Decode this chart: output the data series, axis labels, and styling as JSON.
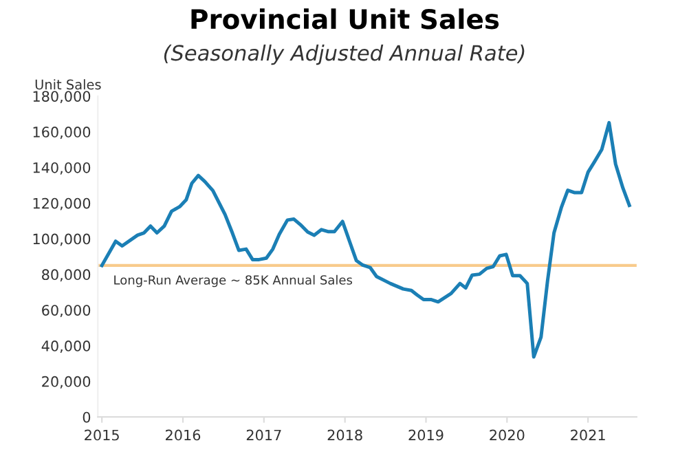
{
  "chart_data": {
    "type": "line",
    "title": "Provincial Unit Sales",
    "subtitle": "(Seasonally Adjusted Annual Rate)",
    "ylabel": "Unit Sales",
    "x": [
      2015.0,
      2015.17,
      2015.25,
      2015.44,
      2015.52,
      2015.6,
      2015.68,
      2015.77,
      2015.86,
      2015.96,
      2016.04,
      2016.11,
      2016.19,
      2016.27,
      2016.37,
      2016.52,
      2016.61,
      2016.69,
      2016.78,
      2016.86,
      2016.94,
      2017.03,
      2017.11,
      2017.19,
      2017.29,
      2017.37,
      2017.45,
      2017.54,
      2017.62,
      2017.71,
      2017.79,
      2017.87,
      2017.97,
      2018.06,
      2018.14,
      2018.22,
      2018.31,
      2018.39,
      2018.56,
      2018.72,
      2018.82,
      2018.89,
      2018.97,
      2019.06,
      2019.15,
      2019.31,
      2019.42,
      2019.49,
      2019.57,
      2019.66,
      2019.75,
      2019.83,
      2019.91,
      2019.99,
      2020.07,
      2020.16,
      2020.25,
      2020.33,
      2020.42,
      2020.5,
      2020.58,
      2020.67,
      2020.75,
      2020.83,
      2020.92,
      2021.0,
      2021.08,
      2021.17,
      2021.26,
      2021.34,
      2021.43,
      2021.51
    ],
    "series": [
      {
        "color": "#1b7fb5",
        "values": [
          85000,
          98600,
          96000,
          102000,
          103300,
          107100,
          103300,
          107100,
          115400,
          118000,
          121800,
          131100,
          135500,
          132100,
          127000,
          113600,
          103300,
          93500,
          94200,
          88300,
          88300,
          89100,
          94200,
          102500,
          110500,
          111000,
          107900,
          103800,
          102000,
          105100,
          104000,
          104000,
          109700,
          98100,
          87800,
          85200,
          83900,
          78800,
          74900,
          71800,
          71000,
          68500,
          65900,
          65900,
          64600,
          69300,
          74900,
          72400,
          79600,
          80100,
          83400,
          84400,
          90400,
          91200,
          79300,
          79300,
          74900,
          33700,
          44800,
          76200,
          103300,
          117400,
          127200,
          125900,
          125900,
          137300,
          143200,
          150100,
          165100,
          141900,
          128500,
          118700
        ]
      }
    ],
    "xlim": [
      2014.95,
      2021.6
    ],
    "xticks": [
      2015,
      2016,
      2017,
      2018,
      2019,
      2020,
      2021
    ],
    "ylim": [
      0,
      180000
    ],
    "yticks": [
      {
        "value": 0,
        "label": "0"
      },
      {
        "value": 20000,
        "label": "20,000"
      },
      {
        "value": 40000,
        "label": "40,000"
      },
      {
        "value": 60000,
        "label": "60,000"
      },
      {
        "value": 80000,
        "label": "80,000"
      },
      {
        "value": 100000,
        "label": "100,000"
      },
      {
        "value": 120000,
        "label": "120,000"
      },
      {
        "value": 140000,
        "label": "140,000"
      },
      {
        "value": 160000,
        "label": "160,000"
      },
      {
        "value": 180000,
        "label": "180,000"
      }
    ],
    "ref_lines": [
      {
        "axis": "y",
        "value": 85000,
        "label": "Long-Run Average ~ 85K Annual Sales",
        "color": "#f8cb8c"
      }
    ]
  }
}
